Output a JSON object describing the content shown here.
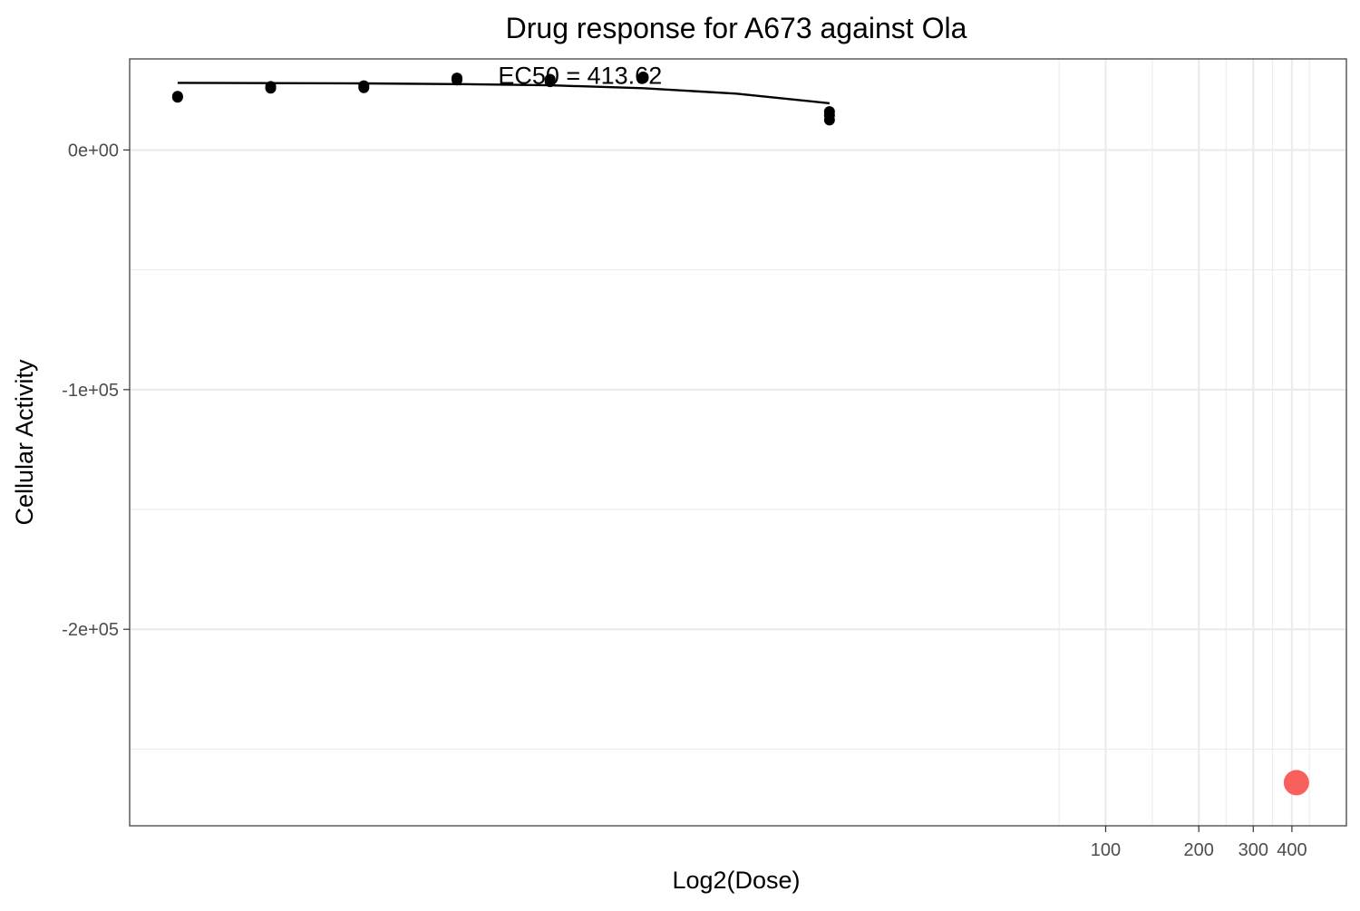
{
  "chart_data": {
    "type": "scatter",
    "title": "Drug response for A673 against Ola",
    "xlabel": "Log2(Dose)",
    "ylabel": "Cellular Activity",
    "x_scale": "log2",
    "xlim": [
      0.07,
      600
    ],
    "ylim": [
      -282000,
      38000
    ],
    "x_ticks": [
      100,
      200,
      300,
      400
    ],
    "x_tick_labels": [
      "100",
      "200",
      "300",
      "400"
    ],
    "y_ticks": [
      0,
      -100000,
      -200000
    ],
    "y_tick_labels": [
      "0e+00",
      "-1e+05",
      "-2e+05"
    ],
    "grid": true,
    "legend": "none",
    "colors": {
      "points": "#000000",
      "fit": "#000000",
      "ec50_marker": "#f8605e",
      "grid": "#ebebeb",
      "border": "#333333"
    },
    "series": [
      {
        "type": "scatter",
        "points": [
          {
            "x": 0.1,
            "y": 22400
          },
          {
            "x": 0.1,
            "y": 22000
          },
          {
            "x": 0.2,
            "y": 26500
          },
          {
            "x": 0.2,
            "y": 25800
          },
          {
            "x": 0.4,
            "y": 26800
          },
          {
            "x": 0.4,
            "y": 26000
          },
          {
            "x": 0.8,
            "y": 30000
          },
          {
            "x": 0.8,
            "y": 29200
          },
          {
            "x": 1.6,
            "y": 29500
          },
          {
            "x": 1.6,
            "y": 28500
          },
          {
            "x": 3.2,
            "y": 30500
          },
          {
            "x": 3.2,
            "y": 30000
          },
          {
            "x": 12.8,
            "y": 16000
          },
          {
            "x": 12.8,
            "y": 14500
          },
          {
            "x": 12.8,
            "y": 12500
          }
        ]
      },
      {
        "type": "line",
        "points": [
          {
            "x": 0.1,
            "y": 28000
          },
          {
            "x": 0.2,
            "y": 27900
          },
          {
            "x": 0.4,
            "y": 27800
          },
          {
            "x": 0.8,
            "y": 27500
          },
          {
            "x": 1.6,
            "y": 27000
          },
          {
            "x": 3.2,
            "y": 25800
          },
          {
            "x": 6.4,
            "y": 23500
          },
          {
            "x": 12.8,
            "y": 19500
          }
        ]
      },
      {
        "type": "ec50",
        "points": [
          {
            "x": 413.62,
            "y": -264000
          }
        ]
      }
    ],
    "annotations": [
      {
        "text": "EC50 = 413.62",
        "x": 2.0,
        "y": 31000
      }
    ]
  }
}
